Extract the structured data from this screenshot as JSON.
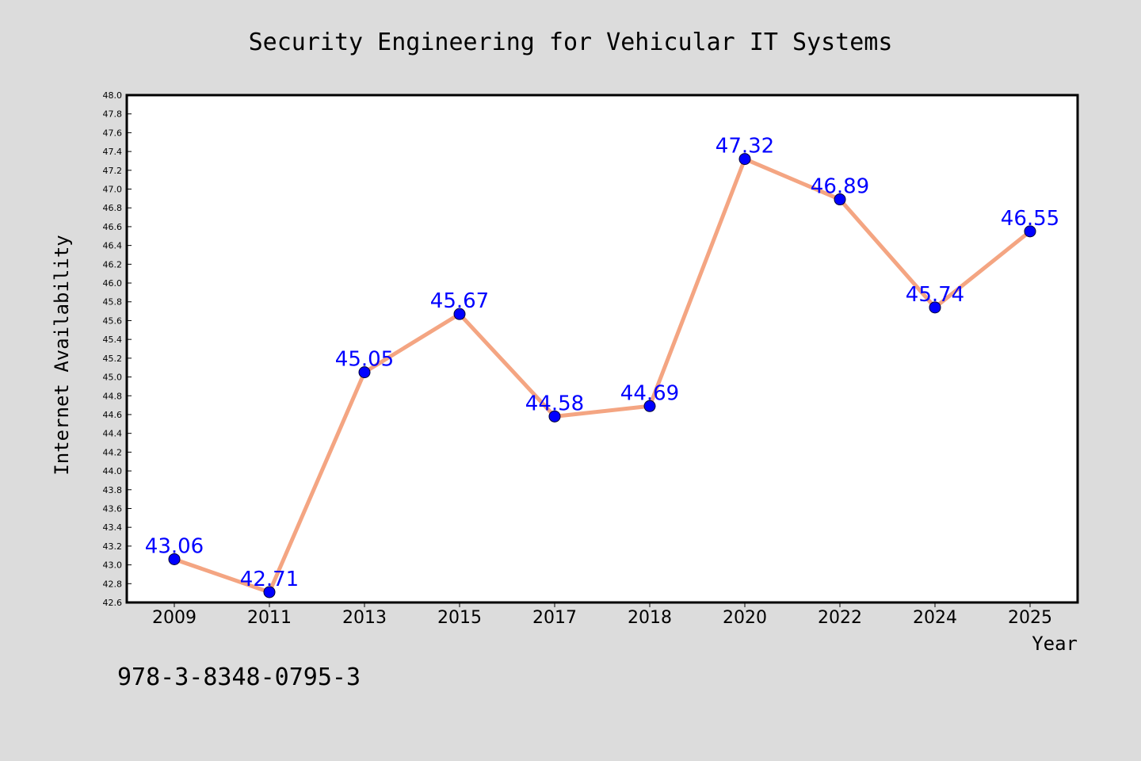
{
  "chart_data": {
    "type": "line",
    "title": "Security Engineering for Vehicular IT Systems",
    "xlabel": "Year",
    "ylabel": "Internet Availability",
    "categories": [
      "2009",
      "2011",
      "2013",
      "2015",
      "2017",
      "2018",
      "2020",
      "2022",
      "2024",
      "2025"
    ],
    "series": [
      {
        "values": [
          43.06,
          42.71,
          45.05,
          45.67,
          44.58,
          44.69,
          47.32,
          46.89,
          45.74,
          46.55
        ],
        "data_labels": [
          "43.06",
          "42.71",
          "45.05",
          "45.67",
          "44.58",
          "44.69",
          "47.32",
          "46.89",
          "45.74",
          "46.55"
        ],
        "line_color": "#f4a582",
        "marker_color": "#0000ff",
        "label_color": "#0000ff"
      }
    ],
    "ylim": [
      42.6,
      48.0
    ],
    "ytick_step": 0.2,
    "ytick_labels": [
      "42.6",
      "42.8",
      "43.0",
      "43.2",
      "43.4",
      "43.6",
      "43.8",
      "44.0",
      "44.2",
      "44.4",
      "44.6",
      "44.8",
      "45.0",
      "45.2",
      "45.4",
      "45.6",
      "45.8",
      "46.0",
      "46.2",
      "46.4",
      "46.6",
      "46.8",
      "47.0",
      "47.2",
      "47.4",
      "47.6",
      "47.8",
      "48.0"
    ],
    "grid": false,
    "legend": "none",
    "annotation": "978-3-8348-0795-3",
    "colors": {
      "background": "#dcdcdc",
      "plot_background": "#ffffff",
      "frame": "#000000"
    }
  }
}
